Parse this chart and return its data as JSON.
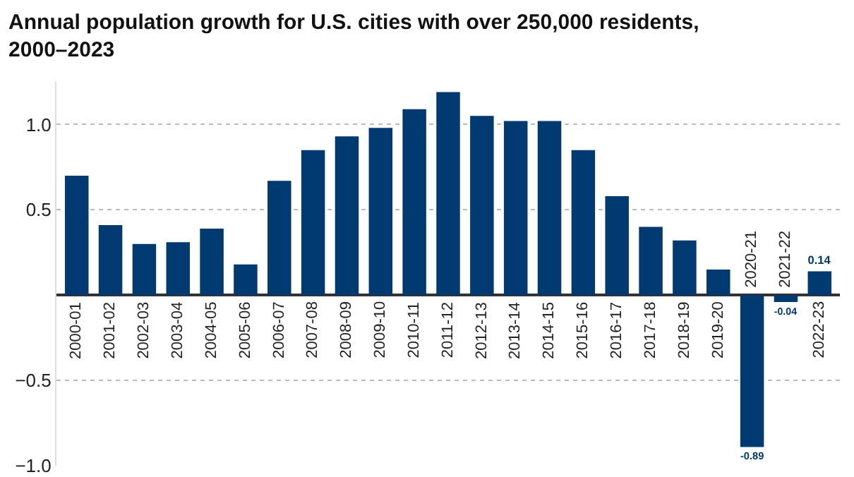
{
  "chart_data": {
    "type": "bar",
    "title": "Annual population growth for U.S. cities with over 250,000 residents, 2000–2023",
    "categories": [
      "2000-01",
      "2001-02",
      "2002-03",
      "2003-04",
      "2004-05",
      "2005-06",
      "2006-07",
      "2007-08",
      "2008-09",
      "2009-10",
      "2010-11",
      "2011-12",
      "2012-13",
      "2013-14",
      "2014-15",
      "2015-16",
      "2016-17",
      "2017-18",
      "2018-19",
      "2019-20",
      "2020-21",
      "2021-22",
      "2022-23"
    ],
    "values": [
      0.7,
      0.41,
      0.3,
      0.31,
      0.39,
      0.18,
      0.67,
      0.85,
      0.93,
      0.98,
      1.09,
      1.19,
      1.05,
      1.02,
      1.02,
      0.85,
      0.58,
      0.4,
      0.32,
      0.15,
      -0.89,
      -0.04,
      0.14
    ],
    "value_labels": [
      null,
      null,
      null,
      null,
      null,
      null,
      null,
      null,
      null,
      null,
      null,
      null,
      null,
      null,
      null,
      null,
      null,
      null,
      null,
      null,
      "-0.89",
      "-0.04",
      "0.14"
    ],
    "color": "#003a70",
    "ylim": [
      -1,
      1.25
    ],
    "yticks": [
      {
        "value": -1,
        "label": "−1.0"
      },
      {
        "value": -0.5,
        "label": "−0.5"
      },
      {
        "value": 0.5,
        "label": "0.5"
      },
      {
        "value": 1,
        "label": "1.0"
      }
    ],
    "grid": "y"
  }
}
